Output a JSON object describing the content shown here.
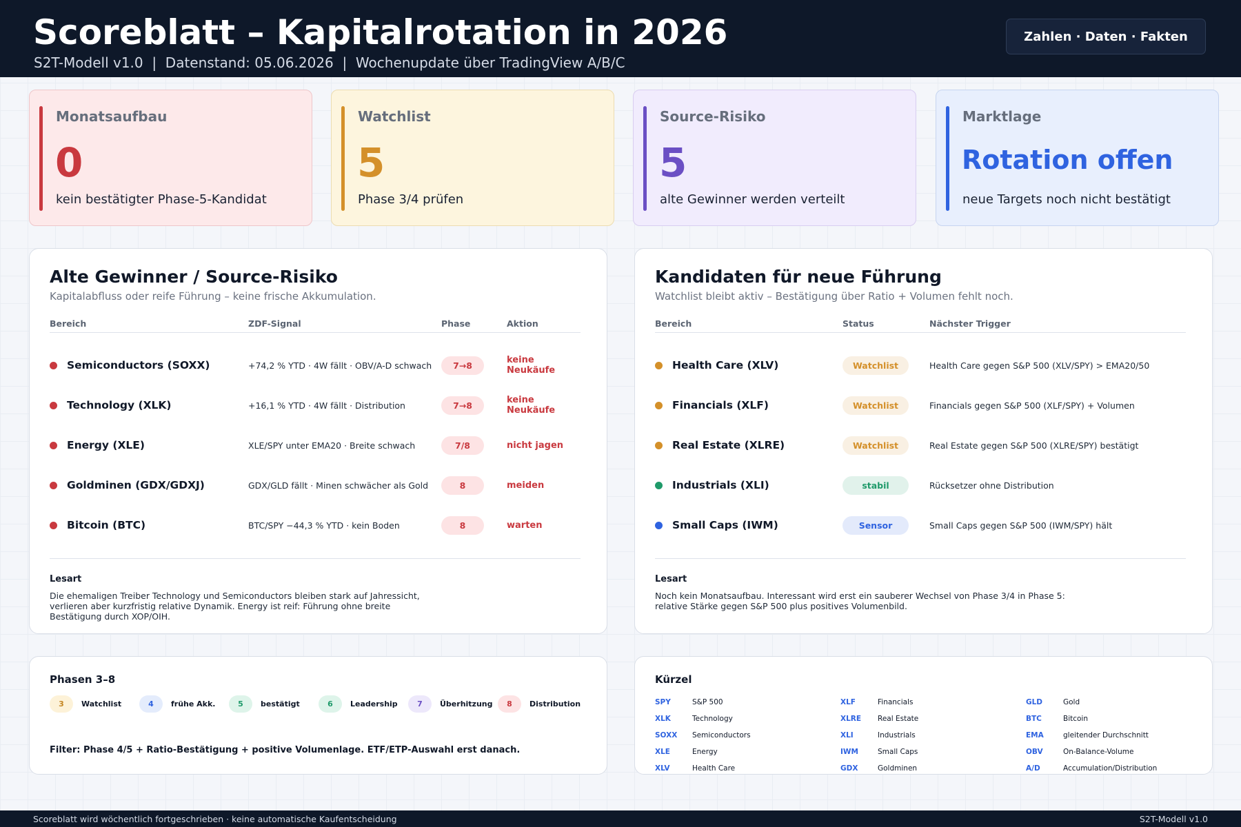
{
  "header": {
    "title": "Scoreblatt – Kapitalrotation in 2026",
    "subtitle": "S2T-Modell v1.0  |  Datenstand: 05.06.2026  |  Wochenupdate über TradingView A/B/C",
    "button": "Zahlen · Daten · Fakten"
  },
  "kpis": [
    {
      "label": "Monatsaufbau",
      "value": 0,
      "note": "kein bestätigter Phase-5-Kandidat"
    },
    {
      "label": "Watchlist",
      "value": 5,
      "note": "Phase 3/4 prüfen"
    },
    {
      "label": "Source-Risiko",
      "value": 5,
      "note": "alte Gewinner werden verteilt"
    },
    {
      "label": "Marktlage",
      "value": "Rotation offen",
      "note": "neue Targets noch nicht bestätigt"
    }
  ],
  "old_winners": {
    "title": "Alte Gewinner / Source-Risiko",
    "subtitle": "Kapitalabfluss oder reife Führung – keine frische Akkumulation.",
    "columns": [
      "Bereich",
      "ZDF-Signal",
      "Phase",
      "Aktion"
    ],
    "rows": [
      [
        "Semiconductors (SOXX)",
        "+74,2 % YTD · 4W fällt · OBV/A-D schwach",
        "7→8",
        "keine Neukäufe"
      ],
      [
        "Technology (XLK)",
        "+16,1 % YTD · 4W fällt · Distribution",
        "7→8",
        "keine Neukäufe"
      ],
      [
        "Energy (XLE)",
        "XLE/SPY unter EMA20 · Breite schwach",
        "7/8",
        "nicht jagen"
      ],
      [
        "Goldminen (GDX/GDXJ)",
        "GDX/GLD fällt · Minen schwächer als Gold",
        "8",
        "meiden"
      ],
      [
        "Bitcoin (BTC)",
        "BTC/SPY −44,3 % YTD · kein Boden",
        "8",
        "warten"
      ]
    ],
    "note_title": "Lesart",
    "note_lines": [
      "Die ehemaligen Treiber Technology und Semiconductors bleiben stark auf Jahressicht,",
      "verlieren aber kurzfristig relative Dynamik. Energy ist reif: Führung ohne breite",
      "Bestätigung durch XOP/OIH."
    ]
  },
  "candidates": {
    "title": "Kandidaten für neue Führung",
    "subtitle": "Watchlist bleibt aktiv – Bestätigung über Ratio + Volumen fehlt noch.",
    "columns": [
      "Bereich",
      "Status",
      "Nächster Trigger"
    ],
    "rows": [
      {
        "name": "Health Care (XLV)",
        "status": "Watchlist",
        "trigger": "Health Care gegen S&P 500 (XLV/SPY) > EMA20/50",
        "color": "#d4902a"
      },
      {
        "name": "Financials (XLF)",
        "status": "Watchlist",
        "trigger": "Financials gegen S&P 500 (XLF/SPY) + Volumen",
        "color": "#d4902a"
      },
      {
        "name": "Real Estate (XLRE)",
        "status": "Watchlist",
        "trigger": "Real Estate gegen S&P 500 (XLRE/SPY) bestätigt",
        "color": "#d4902a"
      },
      {
        "name": "Industrials (XLI)",
        "status": "stabil",
        "trigger": "Rücksetzer ohne Distribution",
        "color": "#1f9a6a"
      },
      {
        "name": "Small Caps (IWM)",
        "status": "Sensor",
        "trigger": "Small Caps gegen S&P 500 (IWM/SPY) hält",
        "color": "#2f63e0"
      }
    ],
    "note_title": "Lesart",
    "note_lines": [
      "Noch kein Monatsaufbau. Interessant wird erst ein sauberer Wechsel von Phase 3/4 in Phase 5:",
      "relative Stärke gegen S&P 500 plus positives Volumenbild."
    ]
  },
  "phases": {
    "title": "Phasen 3–8",
    "items": [
      [
        3,
        "Watchlist"
      ],
      [
        4,
        "frühe Akk."
      ],
      [
        5,
        "bestätigt"
      ],
      [
        6,
        "Leadership"
      ],
      [
        7,
        "Überhitzung"
      ],
      [
        8,
        "Distribution"
      ]
    ],
    "filter": "Filter: Phase 4/5 + Ratio-Bestätigung + positive Volumenlage. ETF/ETP-Auswahl erst danach."
  },
  "glossary": {
    "title": "Kürzel",
    "items": [
      [
        "SPY",
        "S&P 500"
      ],
      [
        "XLK",
        "Technology"
      ],
      [
        "SOXX",
        "Semiconductors"
      ],
      [
        "XLE",
        "Energy"
      ],
      [
        "XLV",
        "Health Care"
      ],
      [
        "XLF",
        "Financials"
      ],
      [
        "XLRE",
        "Real Estate"
      ],
      [
        "XLI",
        "Industrials"
      ],
      [
        "IWM",
        "Small Caps"
      ],
      [
        "GDX",
        "Goldminen"
      ],
      [
        "GLD",
        "Gold"
      ],
      [
        "BTC",
        "Bitcoin"
      ],
      [
        "EMA",
        "gleitender Durchschnitt"
      ],
      [
        "OBV",
        "On-Balance-Volume"
      ],
      [
        "A/D",
        "Accumulation/Distribution"
      ]
    ]
  },
  "footer": {
    "left": "Scoreblatt wird wöchentlich fortgeschrieben · keine automatische Kaufentscheidung",
    "right": "S2T-Modell v1.0"
  }
}
